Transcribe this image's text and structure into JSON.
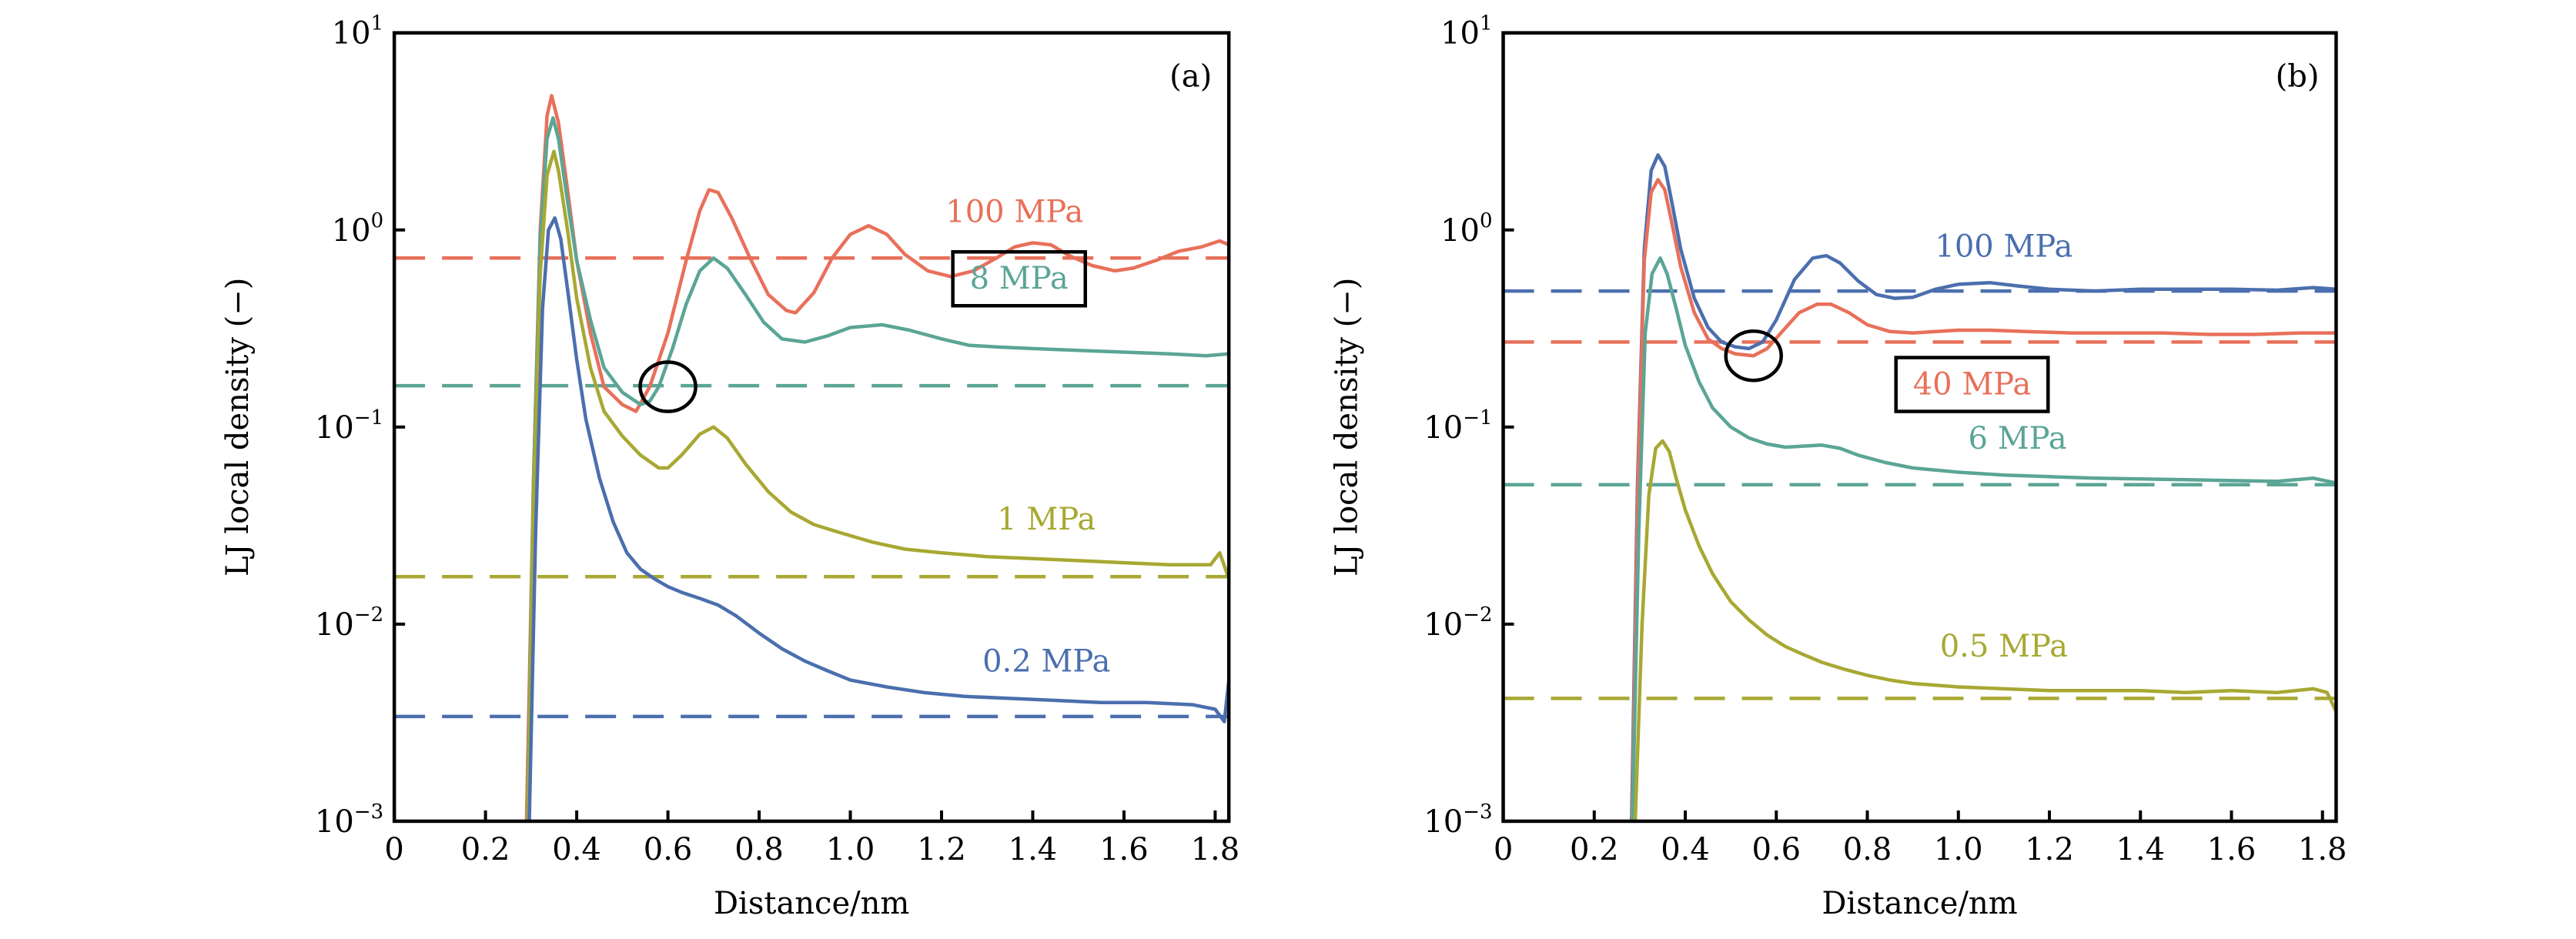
{
  "chart_data": [
    {
      "type": "line",
      "panel": "(a)",
      "xlabel": "Distance/nm",
      "ylabel": "LJ local density (−)",
      "xscale": "linear",
      "yscale": "log",
      "xlim": [
        0,
        1.83
      ],
      "ylim": [
        0.001,
        10
      ],
      "xticks": [
        0,
        0.2,
        0.4,
        0.6,
        0.8,
        1.0,
        1.2,
        1.4,
        1.6,
        1.8
      ],
      "xtick_labels": [
        "0",
        "0.2",
        "0.4",
        "0.6",
        "0.8",
        "1.0",
        "1.2",
        "1.4",
        "1.6",
        "1.8"
      ],
      "yticks": [
        0.001,
        0.01,
        0.1,
        1,
        10
      ],
      "ytick_labels": [
        {
          "base": "10",
          "exp": "−3"
        },
        {
          "base": "10",
          "exp": "−2"
        },
        {
          "base": "10",
          "exp": "−1"
        },
        {
          "base": "10",
          "exp": "0"
        },
        {
          "base": "10",
          "exp": "1"
        }
      ],
      "grid": false,
      "series": [
        {
          "name": "100 MPa",
          "color": "#E8705A",
          "boxed": false,
          "bulk": 0.72,
          "label_pos": [
            1.36,
            1.2
          ],
          "x": [
            0.29,
            0.305,
            0.32,
            0.335,
            0.345,
            0.36,
            0.38,
            0.4,
            0.43,
            0.46,
            0.5,
            0.53,
            0.56,
            0.6,
            0.64,
            0.67,
            0.69,
            0.71,
            0.74,
            0.78,
            0.82,
            0.86,
            0.88,
            0.92,
            0.96,
            1.0,
            1.04,
            1.08,
            1.12,
            1.17,
            1.22,
            1.27,
            1.32,
            1.36,
            1.4,
            1.44,
            1.48,
            1.53,
            1.58,
            1.62,
            1.67,
            1.72,
            1.77,
            1.81,
            1.83
          ],
          "y": [
            0.001,
            0.05,
            1.0,
            3.8,
            4.8,
            3.5,
            1.6,
            0.7,
            0.3,
            0.16,
            0.13,
            0.12,
            0.16,
            0.3,
            0.7,
            1.25,
            1.6,
            1.55,
            1.15,
            0.72,
            0.47,
            0.39,
            0.38,
            0.48,
            0.72,
            0.95,
            1.05,
            0.95,
            0.75,
            0.62,
            0.58,
            0.62,
            0.72,
            0.82,
            0.86,
            0.84,
            0.74,
            0.66,
            0.62,
            0.64,
            0.7,
            0.78,
            0.82,
            0.88,
            0.84
          ]
        },
        {
          "name": "8 MPa",
          "color": "#5BA596",
          "boxed": true,
          "bulk": 0.162,
          "label_pos": [
            1.37,
            0.55
          ],
          "x": [
            0.292,
            0.305,
            0.32,
            0.335,
            0.348,
            0.36,
            0.38,
            0.4,
            0.43,
            0.46,
            0.5,
            0.54,
            0.56,
            0.58,
            0.61,
            0.64,
            0.67,
            0.7,
            0.73,
            0.77,
            0.81,
            0.85,
            0.9,
            0.95,
            1.0,
            1.07,
            1.13,
            1.2,
            1.26,
            1.32,
            1.4,
            1.5,
            1.6,
            1.7,
            1.78,
            1.83
          ],
          "y": [
            0.001,
            0.05,
            0.9,
            2.9,
            3.7,
            2.9,
            1.4,
            0.7,
            0.35,
            0.2,
            0.15,
            0.13,
            0.135,
            0.16,
            0.25,
            0.42,
            0.62,
            0.72,
            0.64,
            0.47,
            0.34,
            0.28,
            0.27,
            0.29,
            0.32,
            0.33,
            0.31,
            0.28,
            0.26,
            0.255,
            0.25,
            0.245,
            0.24,
            0.235,
            0.23,
            0.235
          ]
        },
        {
          "name": "1 MPa",
          "color": "#A8A833",
          "boxed": false,
          "bulk": 0.0174,
          "label_pos": [
            1.43,
            0.033
          ],
          "x": [
            0.293,
            0.305,
            0.32,
            0.335,
            0.35,
            0.36,
            0.38,
            0.4,
            0.43,
            0.46,
            0.5,
            0.54,
            0.58,
            0.6,
            0.63,
            0.67,
            0.7,
            0.73,
            0.77,
            0.82,
            0.87,
            0.92,
            0.98,
            1.05,
            1.12,
            1.2,
            1.3,
            1.4,
            1.5,
            1.6,
            1.7,
            1.79,
            1.81,
            1.83
          ],
          "y": [
            0.001,
            0.04,
            0.6,
            1.9,
            2.5,
            2.0,
            1.0,
            0.45,
            0.2,
            0.12,
            0.09,
            0.072,
            0.062,
            0.062,
            0.072,
            0.092,
            0.1,
            0.088,
            0.065,
            0.047,
            0.037,
            0.032,
            0.029,
            0.026,
            0.024,
            0.023,
            0.022,
            0.0215,
            0.021,
            0.0205,
            0.02,
            0.02,
            0.023,
            0.017
          ]
        },
        {
          "name": "0.2 MPa",
          "color": "#4B6FAE",
          "boxed": false,
          "bulk": 0.0034,
          "label_pos": [
            1.43,
            0.0063
          ],
          "x": [
            0.296,
            0.31,
            0.325,
            0.338,
            0.352,
            0.365,
            0.38,
            0.4,
            0.42,
            0.45,
            0.48,
            0.51,
            0.54,
            0.57,
            0.6,
            0.63,
            0.67,
            0.71,
            0.75,
            0.8,
            0.85,
            0.9,
            0.95,
            1.0,
            1.08,
            1.16,
            1.25,
            1.35,
            1.45,
            1.55,
            1.65,
            1.75,
            1.8,
            1.82,
            1.83
          ],
          "y": [
            0.001,
            0.03,
            0.4,
            1.0,
            1.15,
            0.9,
            0.5,
            0.22,
            0.11,
            0.055,
            0.033,
            0.023,
            0.019,
            0.017,
            0.0155,
            0.0145,
            0.0135,
            0.0125,
            0.011,
            0.009,
            0.0075,
            0.0065,
            0.0058,
            0.0052,
            0.0048,
            0.0045,
            0.0043,
            0.0042,
            0.0041,
            0.004,
            0.004,
            0.0039,
            0.0037,
            0.0032,
            0.0052
          ]
        }
      ],
      "annotations": [
        {
          "type": "ellipse",
          "x": 0.6,
          "y": 0.16
        }
      ]
    },
    {
      "type": "line",
      "panel": "(b)",
      "xlabel": "Distance/nm",
      "ylabel": "LJ local density (−)",
      "xscale": "linear",
      "yscale": "log",
      "xlim": [
        0,
        1.83
      ],
      "ylim": [
        0.001,
        10
      ],
      "xticks": [
        0,
        0.2,
        0.4,
        0.6,
        0.8,
        1.0,
        1.2,
        1.4,
        1.6,
        1.8
      ],
      "xtick_labels": [
        "0",
        "0.2",
        "0.4",
        "0.6",
        "0.8",
        "1.0",
        "1.2",
        "1.4",
        "1.6",
        "1.8"
      ],
      "yticks": [
        0.001,
        0.01,
        0.1,
        1,
        10
      ],
      "ytick_labels": [
        {
          "base": "10",
          "exp": "−3"
        },
        {
          "base": "10",
          "exp": "−2"
        },
        {
          "base": "10",
          "exp": "−1"
        },
        {
          "base": "10",
          "exp": "0"
        },
        {
          "base": "10",
          "exp": "1"
        }
      ],
      "grid": false,
      "series": [
        {
          "name": "100 MPa",
          "color": "#4B6FAE",
          "boxed": false,
          "bulk": 0.49,
          "label_pos": [
            1.1,
            0.8
          ],
          "x": [
            0.282,
            0.295,
            0.31,
            0.325,
            0.34,
            0.355,
            0.37,
            0.39,
            0.42,
            0.45,
            0.48,
            0.51,
            0.54,
            0.57,
            0.6,
            0.64,
            0.68,
            0.71,
            0.74,
            0.78,
            0.82,
            0.86,
            0.9,
            0.95,
            1.0,
            1.07,
            1.13,
            1.2,
            1.3,
            1.4,
            1.5,
            1.6,
            1.7,
            1.78,
            1.83
          ],
          "y": [
            0.001,
            0.05,
            0.8,
            2.0,
            2.4,
            2.1,
            1.4,
            0.8,
            0.45,
            0.32,
            0.27,
            0.255,
            0.25,
            0.27,
            0.35,
            0.56,
            0.72,
            0.74,
            0.68,
            0.55,
            0.47,
            0.45,
            0.455,
            0.5,
            0.53,
            0.54,
            0.52,
            0.5,
            0.49,
            0.5,
            0.5,
            0.5,
            0.495,
            0.51,
            0.5
          ]
        },
        {
          "name": "40 MPa",
          "color": "#E8705A",
          "boxed": true,
          "bulk": 0.27,
          "label_pos": [
            1.03,
            0.16
          ],
          "x": [
            0.283,
            0.296,
            0.31,
            0.325,
            0.34,
            0.355,
            0.37,
            0.39,
            0.42,
            0.45,
            0.48,
            0.51,
            0.55,
            0.58,
            0.61,
            0.65,
            0.69,
            0.72,
            0.76,
            0.8,
            0.85,
            0.9,
            0.95,
            1.0,
            1.07,
            1.15,
            1.25,
            1.35,
            1.45,
            1.55,
            1.65,
            1.75,
            1.83
          ],
          "y": [
            0.001,
            0.05,
            0.7,
            1.55,
            1.8,
            1.6,
            1.1,
            0.65,
            0.38,
            0.28,
            0.25,
            0.235,
            0.23,
            0.25,
            0.3,
            0.38,
            0.42,
            0.42,
            0.38,
            0.33,
            0.305,
            0.3,
            0.305,
            0.31,
            0.31,
            0.305,
            0.3,
            0.3,
            0.3,
            0.295,
            0.295,
            0.3,
            0.3
          ]
        },
        {
          "name": "6 MPa",
          "color": "#5BA596",
          "boxed": false,
          "bulk": 0.051,
          "label_pos": [
            1.13,
            0.085
          ],
          "x": [
            0.284,
            0.298,
            0.312,
            0.327,
            0.345,
            0.36,
            0.38,
            0.4,
            0.43,
            0.46,
            0.5,
            0.54,
            0.58,
            0.62,
            0.66,
            0.7,
            0.74,
            0.78,
            0.84,
            0.9,
            1.0,
            1.1,
            1.2,
            1.3,
            1.4,
            1.5,
            1.6,
            1.7,
            1.78,
            1.83
          ],
          "y": [
            0.001,
            0.03,
            0.3,
            0.6,
            0.72,
            0.6,
            0.4,
            0.26,
            0.17,
            0.125,
            0.1,
            0.088,
            0.082,
            0.079,
            0.08,
            0.081,
            0.078,
            0.072,
            0.066,
            0.062,
            0.059,
            0.057,
            0.056,
            0.055,
            0.0545,
            0.054,
            0.0535,
            0.053,
            0.055,
            0.052
          ]
        },
        {
          "name": "0.5 MPa",
          "color": "#A8A833",
          "boxed": false,
          "bulk": 0.0042,
          "label_pos": [
            1.1,
            0.0075
          ],
          "x": [
            0.29,
            0.305,
            0.32,
            0.335,
            0.35,
            0.365,
            0.38,
            0.4,
            0.43,
            0.46,
            0.5,
            0.54,
            0.58,
            0.62,
            0.66,
            0.7,
            0.75,
            0.8,
            0.85,
            0.9,
            1.0,
            1.1,
            1.2,
            1.3,
            1.4,
            1.5,
            1.6,
            1.7,
            1.78,
            1.81,
            1.83
          ],
          "y": [
            0.001,
            0.01,
            0.045,
            0.078,
            0.085,
            0.075,
            0.055,
            0.038,
            0.025,
            0.018,
            0.013,
            0.0105,
            0.0088,
            0.0077,
            0.007,
            0.0064,
            0.0059,
            0.0055,
            0.0052,
            0.005,
            0.0048,
            0.0047,
            0.0046,
            0.0046,
            0.0046,
            0.0045,
            0.0046,
            0.0045,
            0.0047,
            0.0045,
            0.0036
          ]
        }
      ],
      "annotations": [
        {
          "type": "ellipse",
          "x": 0.55,
          "y": 0.23
        }
      ]
    }
  ]
}
